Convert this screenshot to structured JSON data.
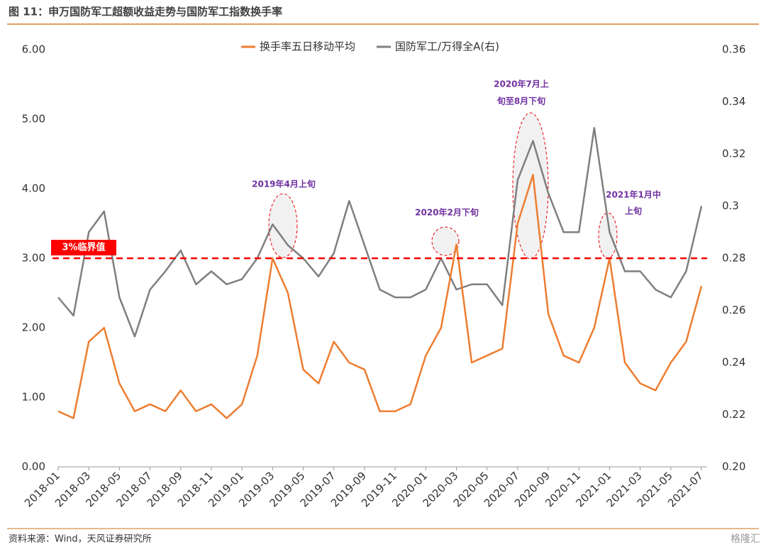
{
  "header": "图 11：申万国防军工超额收益走势与国防军工指数换手率",
  "source": "资料来源：Wind，天风证券研究所",
  "watermark": "格隆汇",
  "chart_data": {
    "type": "line",
    "categories": [
      "2018-01",
      null,
      "2018-03",
      null,
      "2018-05",
      null,
      "2018-07",
      null,
      "2018-09",
      null,
      "2018-11",
      null,
      "2019-01",
      null,
      "2019-03",
      null,
      "2019-05",
      null,
      "2019-07",
      null,
      "2019-09",
      null,
      "2019-11",
      null,
      "2020-01",
      null,
      "2020-03",
      null,
      "2020-05",
      null,
      "2020-07",
      null,
      "2020-09",
      null,
      "2020-11",
      null,
      "2021-01",
      null,
      "2021-03",
      null,
      "2021-05",
      null,
      "2021-07"
    ],
    "series": [
      {
        "name": "换手率五日移动平均",
        "color": "#ed7d31",
        "axis": "y",
        "values": [
          0.8,
          0.7,
          1.8,
          2.0,
          1.2,
          0.8,
          0.9,
          0.8,
          1.1,
          0.8,
          0.9,
          0.7,
          0.9,
          1.6,
          3.0,
          2.5,
          1.4,
          1.2,
          1.8,
          1.5,
          1.4,
          0.8,
          0.8,
          0.9,
          1.6,
          2.0,
          3.2,
          1.5,
          1.6,
          1.7,
          3.5,
          4.2,
          2.2,
          1.6,
          1.5,
          2.0,
          3.0,
          1.5,
          1.2,
          1.1,
          1.5,
          1.8,
          2.6
        ]
      },
      {
        "name": "国防军工/万得全A(右)",
        "color": "#7f7f7f",
        "axis": "y2",
        "values": [
          0.265,
          0.258,
          0.29,
          0.298,
          0.265,
          0.25,
          0.268,
          0.275,
          0.283,
          0.27,
          0.275,
          0.27,
          0.272,
          0.28,
          0.293,
          0.285,
          0.28,
          0.273,
          0.282,
          0.302,
          0.285,
          0.268,
          0.265,
          0.265,
          0.268,
          0.28,
          0.268,
          0.27,
          0.27,
          0.262,
          0.31,
          0.325,
          0.305,
          0.29,
          0.29,
          0.33,
          0.29,
          0.275,
          0.275,
          0.268,
          0.265,
          0.275,
          0.3
        ]
      }
    ],
    "ylim": [
      0,
      6
    ],
    "yticks": [
      {
        "value": 0,
        "label": "0.00"
      },
      {
        "value": 1,
        "label": "1.00"
      },
      {
        "value": 2,
        "label": "2.00"
      },
      {
        "value": 3,
        "label": "3.00"
      },
      {
        "value": 4,
        "label": "4.00"
      },
      {
        "value": 5,
        "label": "5.00"
      },
      {
        "value": 6,
        "label": "6.00"
      }
    ],
    "y2lim": [
      0.2,
      0.36
    ],
    "y2ticks": [
      {
        "value": 0.2,
        "label": "0.20"
      },
      0.22,
      0.24,
      0.26,
      0.28,
      0.3,
      0.32,
      0.34,
      0.36
    ],
    "threshold": {
      "value": 3,
      "label": "3%临界值",
      "color": "#ff0000"
    },
    "annotations": [
      "2019年4月上旬",
      "2020年2月下旬",
      "2020年7月上",
      "旬至8月下旬",
      "2021年1月中",
      "上旬"
    ],
    "legend": "top"
  }
}
